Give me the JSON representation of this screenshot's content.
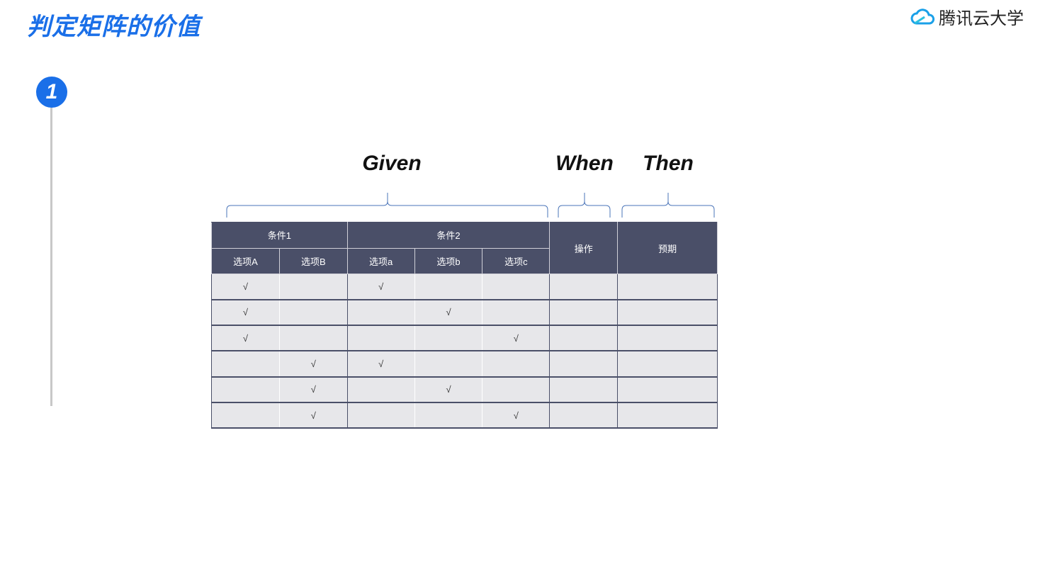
{
  "header": {
    "title": "判定矩阵的价值",
    "logo": "腾讯云大学",
    "step": "1"
  },
  "labels": {
    "given": "Given",
    "when": "When",
    "then": "Then"
  },
  "table": {
    "groups": [
      "条件1",
      "条件2",
      "操作",
      "预期"
    ],
    "options": [
      "选项A",
      "选项B",
      "选项a",
      "选项b",
      "选项c"
    ],
    "rows": [
      [
        "√",
        "",
        "√",
        "",
        "",
        "",
        ""
      ],
      [
        "√",
        "",
        "",
        "√",
        "",
        "",
        ""
      ],
      [
        "√",
        "",
        "",
        "",
        "√",
        "",
        ""
      ],
      [
        "",
        "√",
        "√",
        "",
        "",
        "",
        ""
      ],
      [
        "",
        "√",
        "",
        "√",
        "",
        "",
        ""
      ],
      [
        "",
        "√",
        "",
        "",
        "√",
        "",
        ""
      ]
    ]
  },
  "colors": {
    "accent": "#1a6fe8",
    "header_bg": "#4a4f68",
    "cell_bg": "#e7e7ea",
    "brace": "#4a74b8"
  }
}
